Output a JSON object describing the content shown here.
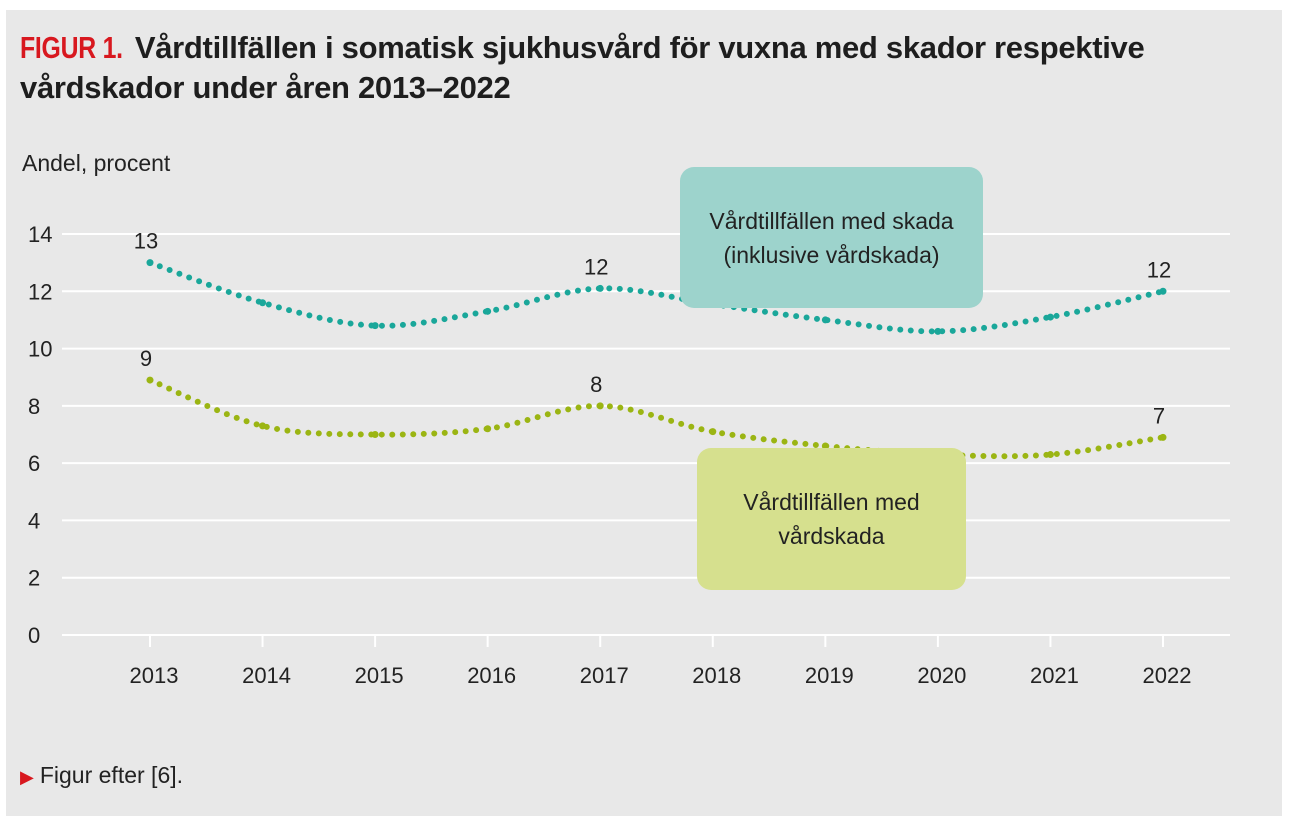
{
  "title": {
    "prefix": "FIGUR 1.",
    "text": "Vårdtillfällen i somatisk sjukhusvård för vuxna med skador respektive vårdskador under åren 2013–2022"
  },
  "footnote": "Figur efter [6].",
  "colors": {
    "teal": "#1aa79a",
    "green": "#9bb513",
    "teal_box": "#9dd3cc",
    "green_box": "#d6e08e",
    "accent": "#d8181f"
  },
  "chart_data": {
    "type": "line",
    "ylabel": "Andel, procent",
    "xlabel": "",
    "ylim": [
      0,
      14
    ],
    "yticks": [
      "0",
      "2",
      "4",
      "6",
      "8",
      "10",
      "12",
      "14"
    ],
    "x": [
      "2013",
      "2014",
      "2015",
      "2016",
      "2017",
      "2018",
      "2019",
      "2020",
      "2021",
      "2022"
    ],
    "grid": true,
    "series": [
      {
        "name": "Vårdtillfällen med skada (inklusive vårdskada)",
        "name_line1": "Vårdtillfällen med skada",
        "name_line2": "(inklusive vårdskada)",
        "color": "#1aa79a",
        "values": [
          13.0,
          11.6,
          10.8,
          11.3,
          12.1,
          11.55,
          11.0,
          10.6,
          11.1,
          12.0
        ],
        "labels": {
          "0": "13",
          "4": "12",
          "9": "12"
        }
      },
      {
        "name": "Vårdtillfällen med vårdskada",
        "name_line1": "Vårdtillfällen med",
        "name_line2": "vårdskada",
        "color": "#9bb513",
        "values": [
          8.9,
          7.3,
          7.0,
          7.2,
          8.0,
          7.1,
          6.6,
          6.3,
          6.3,
          6.9
        ],
        "labels": {
          "0": "9",
          "4": "8",
          "9": "7"
        }
      }
    ]
  }
}
